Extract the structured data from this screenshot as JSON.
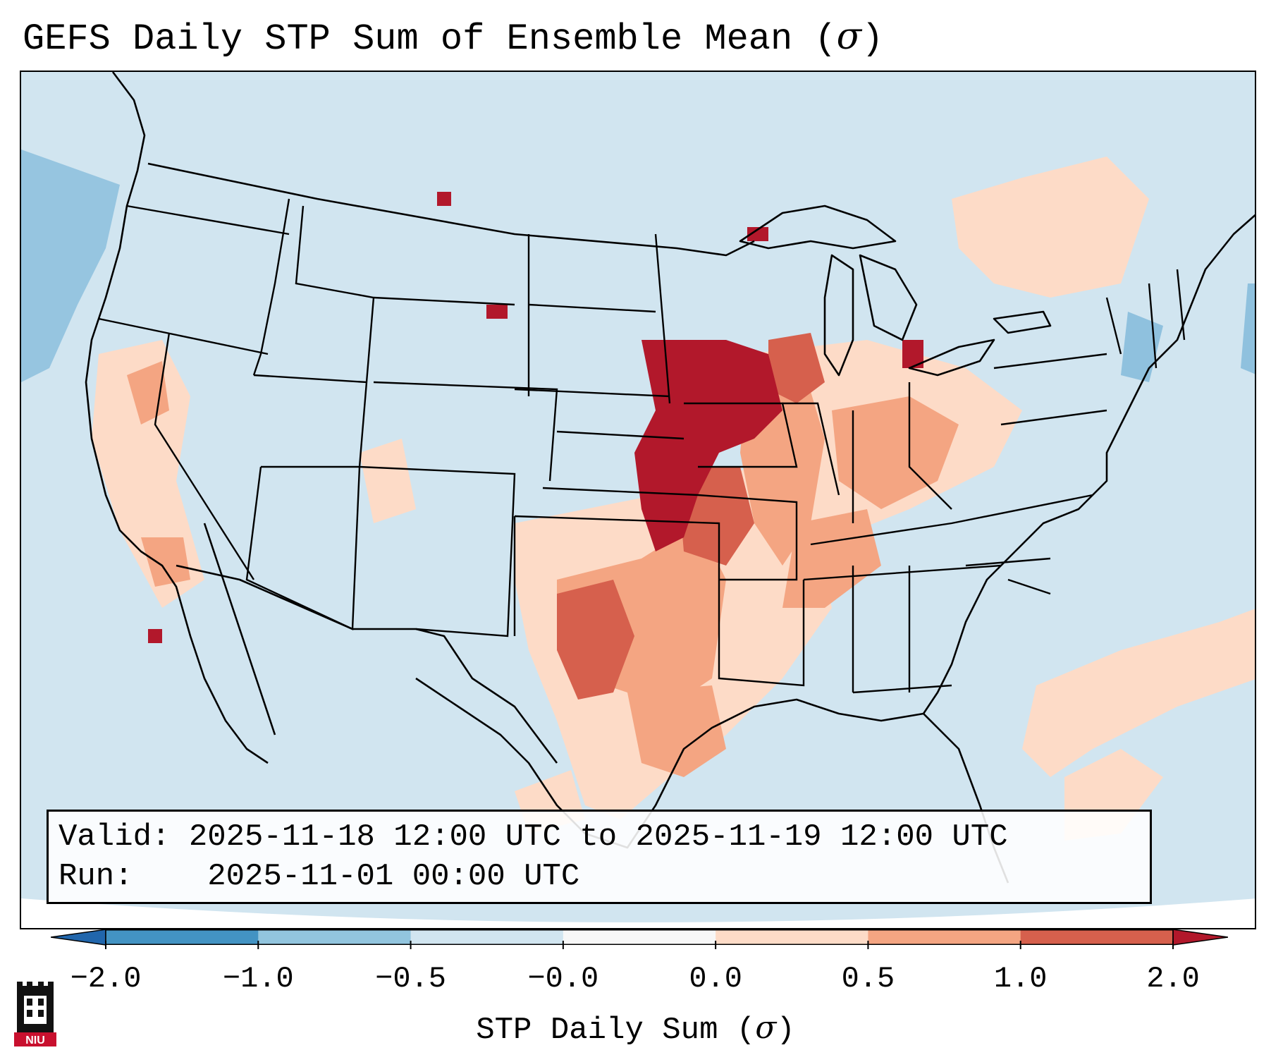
{
  "title": "GEFS Daily STP Sum of Ensemble Mean (",
  "title_symbol": "σ",
  "title_end": ")",
  "info": {
    "valid_label": "Valid:",
    "valid_value": "2025-11-18 12:00 UTC to 2025-11-19 12:00 UTC",
    "run_label": "Run:",
    "run_value": "2025-11-01 00:00 UTC"
  },
  "colorbar": {
    "ticks": [
      "−2.0",
      "−1.0",
      "−0.5",
      "−0.0",
      "0.0",
      "0.5",
      "1.0",
      "2.0"
    ],
    "colors": [
      "#3f8ac4",
      "#8fc1de",
      "#d1e5f0",
      "#f7f7f7",
      "#fddbc7",
      "#f4a582",
      "#d6604d",
      "#b2182b"
    ],
    "under_color": "#2166ac",
    "over_color": "#b2182b",
    "label": "STP Daily Sum (",
    "label_symbol": "σ",
    "label_end": ")"
  },
  "map": {
    "background_color": "#d1e5f0",
    "border_color": "#000000"
  },
  "logo": {
    "text": "NIU",
    "icon": "niu-castle-logo-icon",
    "color": "#c8102e"
  }
}
